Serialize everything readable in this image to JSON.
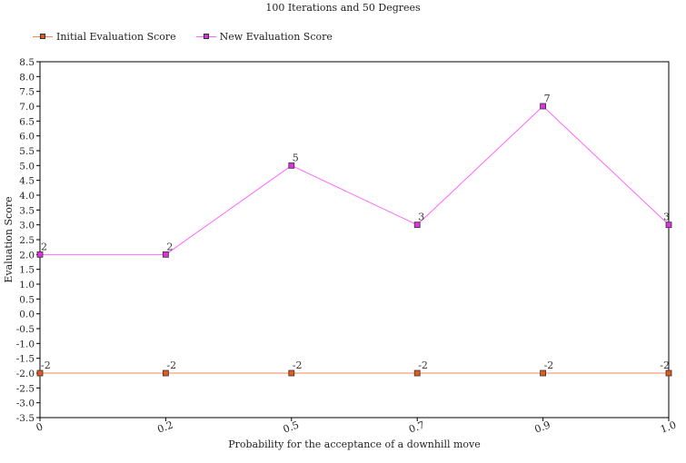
{
  "chart_data": {
    "type": "line",
    "title": "100 Iterations and 50 Degrees",
    "xlabel": "Probability for the acceptance of a downhill move",
    "ylabel": "Evaluation Score",
    "categories": [
      "0",
      "0.2",
      "0.5",
      "0.7",
      "0.9",
      "1.0"
    ],
    "ylim": [
      -3.5,
      8.5
    ],
    "ytick_step": 0.5,
    "yticks": [
      "8.5",
      "8.0",
      "7.5",
      "7.0",
      "6.5",
      "6.0",
      "5.5",
      "5.0",
      "4.5",
      "4.0",
      "3.5",
      "3.0",
      "2.5",
      "2.0",
      "1.5",
      "1.0",
      "0.5",
      "0.0",
      "-0.5",
      "-1.0",
      "-1.5",
      "-2.0",
      "-2.5",
      "-3.0",
      "-3.5"
    ],
    "grid": false,
    "legend": "top-left",
    "series": [
      {
        "name": "Initial Evaluation Score",
        "values": [
          -2,
          -2,
          -2,
          -2,
          -2,
          -2
        ],
        "color": "#f08a5a",
        "marker_color": "#e05a20"
      },
      {
        "name": "New Evaluation Score",
        "values": [
          2,
          2,
          5,
          3,
          7,
          3
        ],
        "color": "#ff66ff",
        "marker_color": "#dd33dd"
      }
    ]
  }
}
